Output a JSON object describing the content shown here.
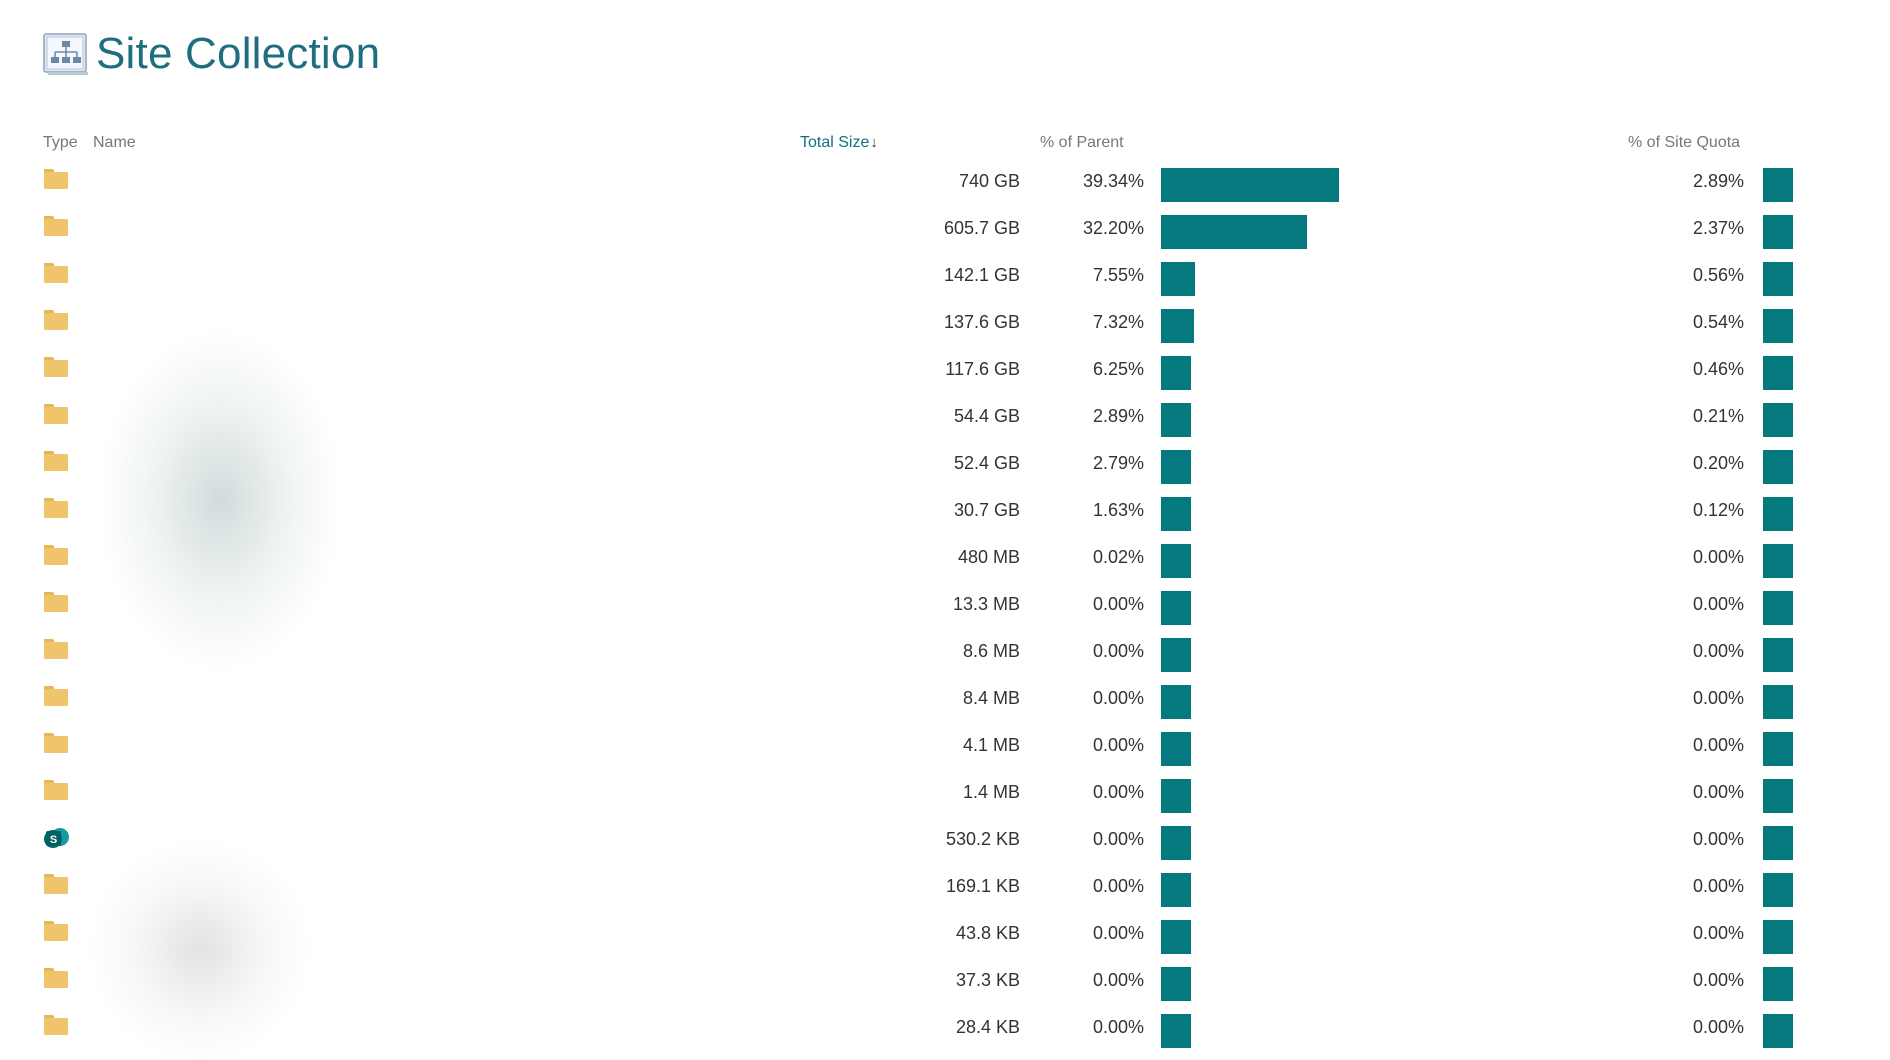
{
  "page": {
    "title": "Site Collection"
  },
  "columns": {
    "type": "Type",
    "name": "Name",
    "total_size": "Total Size",
    "sort_indicator": "↓",
    "pct_parent": "% of Parent",
    "pct_quota": "% of Site Quota"
  },
  "colors": {
    "accent": "#047a7f",
    "title": "#1f6e7f",
    "folder": "#efc46a"
  },
  "rows": [
    {
      "icon": "folder-icon",
      "size": "740 GB",
      "pct_parent": "39.34%",
      "pct_parent_value": 39.34,
      "pct_quota": "2.89%",
      "pct_quota_value": 2.89
    },
    {
      "icon": "folder-icon",
      "size": "605.7 GB",
      "pct_parent": "32.20%",
      "pct_parent_value": 32.2,
      "pct_quota": "2.37%",
      "pct_quota_value": 2.37
    },
    {
      "icon": "folder-icon",
      "size": "142.1 GB",
      "pct_parent": "7.55%",
      "pct_parent_value": 7.55,
      "pct_quota": "0.56%",
      "pct_quota_value": 0.56
    },
    {
      "icon": "folder-icon",
      "size": "137.6 GB",
      "pct_parent": "7.32%",
      "pct_parent_value": 7.32,
      "pct_quota": "0.54%",
      "pct_quota_value": 0.54
    },
    {
      "icon": "folder-icon",
      "size": "117.6 GB",
      "pct_parent": "6.25%",
      "pct_parent_value": 6.25,
      "pct_quota": "0.46%",
      "pct_quota_value": 0.46
    },
    {
      "icon": "folder-icon",
      "size": "54.4 GB",
      "pct_parent": "2.89%",
      "pct_parent_value": 2.89,
      "pct_quota": "0.21%",
      "pct_quota_value": 0.21
    },
    {
      "icon": "folder-icon",
      "size": "52.4 GB",
      "pct_parent": "2.79%",
      "pct_parent_value": 2.79,
      "pct_quota": "0.20%",
      "pct_quota_value": 0.2
    },
    {
      "icon": "folder-icon",
      "size": "30.7 GB",
      "pct_parent": "1.63%",
      "pct_parent_value": 1.63,
      "pct_quota": "0.12%",
      "pct_quota_value": 0.12
    },
    {
      "icon": "folder-icon",
      "size": "480 MB",
      "pct_parent": "0.02%",
      "pct_parent_value": 0.02,
      "pct_quota": "0.00%",
      "pct_quota_value": 0
    },
    {
      "icon": "folder-icon",
      "size": "13.3 MB",
      "pct_parent": "0.00%",
      "pct_parent_value": 0,
      "pct_quota": "0.00%",
      "pct_quota_value": 0
    },
    {
      "icon": "folder-icon",
      "size": "8.6 MB",
      "pct_parent": "0.00%",
      "pct_parent_value": 0,
      "pct_quota": "0.00%",
      "pct_quota_value": 0
    },
    {
      "icon": "folder-icon",
      "size": "8.4 MB",
      "pct_parent": "0.00%",
      "pct_parent_value": 0,
      "pct_quota": "0.00%",
      "pct_quota_value": 0
    },
    {
      "icon": "folder-icon",
      "size": "4.1 MB",
      "pct_parent": "0.00%",
      "pct_parent_value": 0,
      "pct_quota": "0.00%",
      "pct_quota_value": 0
    },
    {
      "icon": "folder-icon",
      "size": "1.4 MB",
      "pct_parent": "0.00%",
      "pct_parent_value": 0,
      "pct_quota": "0.00%",
      "pct_quota_value": 0
    },
    {
      "icon": "sharepoint-site-icon",
      "size": "530.2 KB",
      "pct_parent": "0.00%",
      "pct_parent_value": 0,
      "pct_quota": "0.00%",
      "pct_quota_value": 0
    },
    {
      "icon": "folder-icon",
      "size": "169.1 KB",
      "pct_parent": "0.00%",
      "pct_parent_value": 0,
      "pct_quota": "0.00%",
      "pct_quota_value": 0
    },
    {
      "icon": "folder-icon",
      "size": "43.8 KB",
      "pct_parent": "0.00%",
      "pct_parent_value": 0,
      "pct_quota": "0.00%",
      "pct_quota_value": 0
    },
    {
      "icon": "folder-icon",
      "size": "37.3 KB",
      "pct_parent": "0.00%",
      "pct_parent_value": 0,
      "pct_quota": "0.00%",
      "pct_quota_value": 0
    },
    {
      "icon": "folder-icon",
      "size": "28.4 KB",
      "pct_parent": "0.00%",
      "pct_parent_value": 0,
      "pct_quota": "0.00%",
      "pct_quota_value": 0
    }
  ]
}
